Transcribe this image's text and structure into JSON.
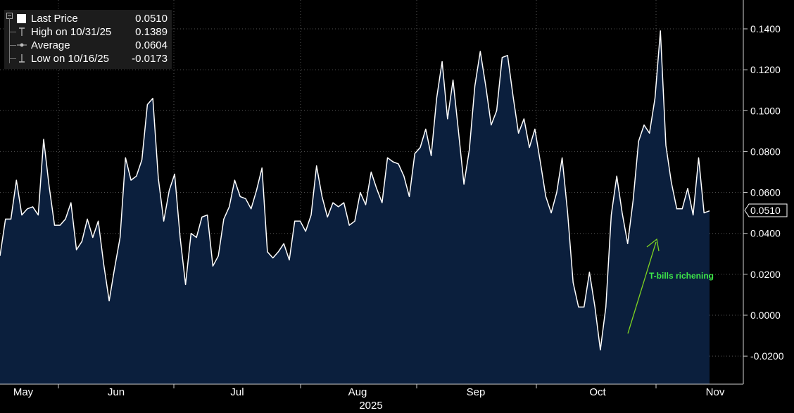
{
  "legend": {
    "last_label": "Last Price",
    "last_value": "0.0510",
    "high_label": "High on 10/31/25",
    "high_value": "0.1389",
    "avg_label": "Average",
    "avg_value": "0.0604",
    "low_label": "Low on 10/16/25",
    "low_value": "-0.0173"
  },
  "colors": {
    "background": "#000000",
    "area_fill": "#0b1f3d",
    "line": "#ffffff",
    "grid": "#4a4a4a",
    "annotation": "#7ed321",
    "annotation_text": "#3ee84a"
  },
  "chart_data": {
    "type": "area",
    "title": "",
    "xlabel": "2025",
    "ylabel": "",
    "ylim": [
      -0.03,
      0.15
    ],
    "y_ticks": [
      "0.1400",
      "0.1200",
      "0.1000",
      "0.0800",
      "0.0600",
      "0.0400",
      "0.0200",
      "0.0000",
      "-0.0200"
    ],
    "y_tick_values": [
      0.14,
      0.12,
      0.1,
      0.08,
      0.06,
      0.04,
      0.02,
      0.0,
      -0.02
    ],
    "x_labels": [
      "May",
      "Jun",
      "Jul",
      "Aug",
      "Sep",
      "Oct",
      "Nov"
    ],
    "x_year_label": "2025",
    "last_value_label": "0.0510",
    "last_value": 0.051,
    "annotation": "T-bills richening",
    "values": [
      0.029,
      0.047,
      0.047,
      0.066,
      0.049,
      0.052,
      0.053,
      0.049,
      0.086,
      0.063,
      0.044,
      0.044,
      0.047,
      0.055,
      0.032,
      0.036,
      0.047,
      0.038,
      0.046,
      0.025,
      0.007,
      0.023,
      0.038,
      0.077,
      0.066,
      0.068,
      0.076,
      0.103,
      0.106,
      0.067,
      0.046,
      0.061,
      0.069,
      0.038,
      0.015,
      0.04,
      0.038,
      0.048,
      0.049,
      0.024,
      0.029,
      0.047,
      0.053,
      0.066,
      0.058,
      0.057,
      0.052,
      0.061,
      0.072,
      0.031,
      0.028,
      0.031,
      0.035,
      0.027,
      0.046,
      0.046,
      0.041,
      0.049,
      0.073,
      0.058,
      0.048,
      0.055,
      0.053,
      0.055,
      0.044,
      0.046,
      0.06,
      0.054,
      0.07,
      0.062,
      0.055,
      0.077,
      0.075,
      0.074,
      0.068,
      0.058,
      0.079,
      0.082,
      0.091,
      0.078,
      0.106,
      0.124,
      0.096,
      0.115,
      0.09,
      0.064,
      0.081,
      0.112,
      0.129,
      0.112,
      0.093,
      0.1,
      0.126,
      0.127,
      0.107,
      0.089,
      0.096,
      0.082,
      0.091,
      0.075,
      0.058,
      0.05,
      0.06,
      0.077,
      0.05,
      0.016,
      0.004,
      0.004,
      0.021,
      0.004,
      -0.017,
      0.004,
      0.049,
      0.068,
      0.05,
      0.035,
      0.056,
      0.085,
      0.093,
      0.089,
      0.106,
      0.139,
      0.083,
      0.065,
      0.052,
      0.052,
      0.062,
      0.049,
      0.077,
      0.05,
      0.051
    ]
  }
}
